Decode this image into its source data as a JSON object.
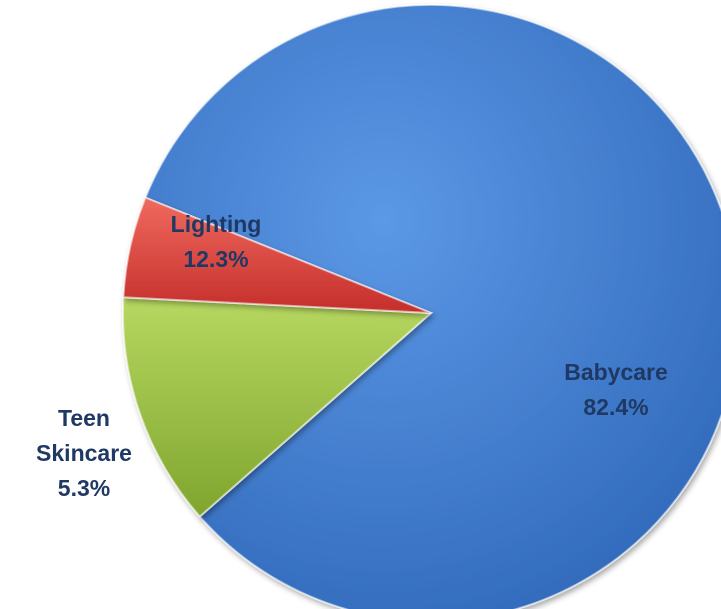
{
  "chart_data": {
    "type": "pie",
    "categories": [
      "Babycare",
      "Lighting",
      "Teen Skincare"
    ],
    "values": [
      82.4,
      12.3,
      5.3
    ],
    "data_labels": [
      [
        "Babycare",
        "82.4%"
      ],
      [
        "Lighting",
        "12.3%"
      ],
      [
        "Teen",
        "Skincare",
        "5.3%"
      ]
    ],
    "colors": [
      "#3f7ed2",
      "#93bb3b",
      "#db3f3b"
    ],
    "label_color": "#1f3864",
    "title": "",
    "legend": "none"
  }
}
